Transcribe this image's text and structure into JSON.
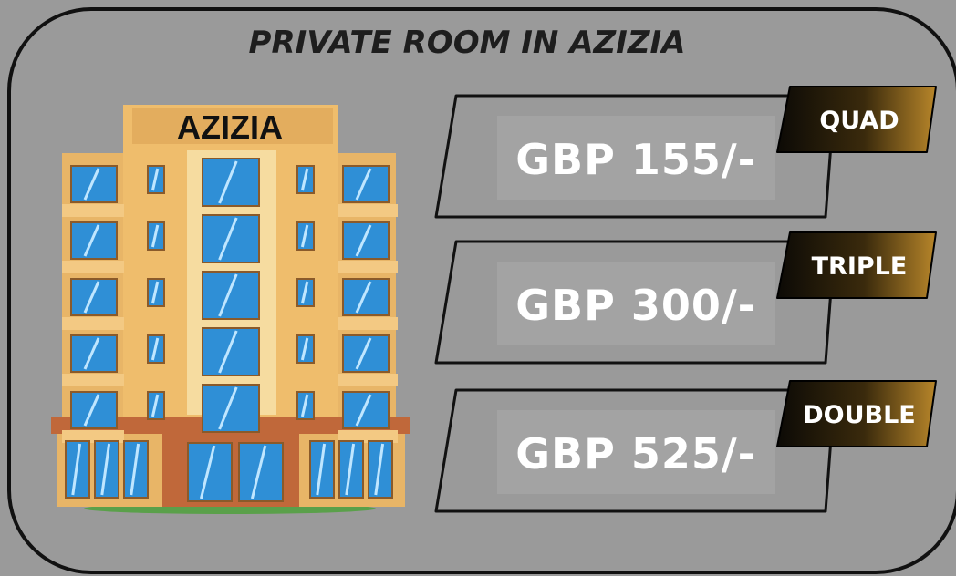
{
  "header": {
    "title": "PRIVATE  ROOM IN AZIZIA"
  },
  "building": {
    "label": "AZIZIA"
  },
  "rooms": [
    {
      "tag": "QUAD",
      "price": "GBP 155/-"
    },
    {
      "tag": "TRIPLE",
      "price": "GBP 300/-"
    },
    {
      "tag": "DOUBLE",
      "price": "GBP 525/-"
    }
  ]
}
